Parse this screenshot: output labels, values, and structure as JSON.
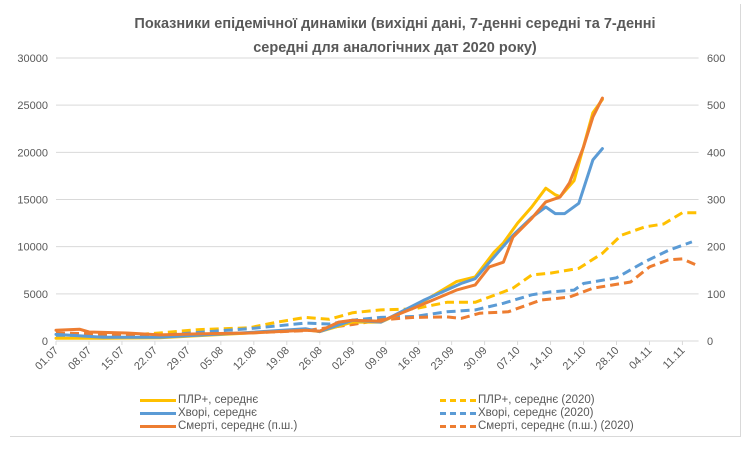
{
  "chart_data": {
    "type": "line",
    "title": "Показники епідемічної динаміки (вихідні дані, 7-денні середні та 7-денні середні для аналогічних дат 2020 року)",
    "title_lines": [
      "Показники епідемічної динаміки (вихідні дані, 7-денні середні та 7-денні",
      "середні для аналогічних дат 2020 року)"
    ],
    "x_start": "01.07",
    "x_end": "14.11",
    "x_ticks": [
      "01.07",
      "08.07",
      "15.07",
      "22.07",
      "29.07",
      "05.08",
      "12.08",
      "19.08",
      "26.08",
      "02.09",
      "09.09",
      "16.09",
      "23.09",
      "30.09",
      "07.10",
      "14.10",
      "21.10",
      "28.10",
      "04.11",
      "11.11"
    ],
    "y_left": {
      "range": [
        0,
        30000
      ],
      "ticks": [
        "0",
        "5000",
        "10000",
        "15000",
        "20000",
        "25000",
        "30000"
      ]
    },
    "y_right": {
      "range": [
        0,
        600
      ],
      "ticks": [
        "0",
        "100",
        "200",
        "300",
        "400",
        "500",
        "600"
      ]
    },
    "grid": true,
    "legend_position": "bottom",
    "series": [
      {
        "name": "ПЛР+, середнє",
        "axis": "left",
        "style": "solid",
        "color": "#FFC000",
        "points": [
          [
            "01.07",
            300
          ],
          [
            "11.07",
            300
          ],
          [
            "23.07",
            350
          ],
          [
            "31.07",
            550
          ],
          [
            "11.08",
            850
          ],
          [
            "23.08",
            1200
          ],
          [
            "26.08",
            1000
          ],
          [
            "02.09",
            2000
          ],
          [
            "08.09",
            2000
          ],
          [
            "15.09",
            3600
          ],
          [
            "24.09",
            6300
          ],
          [
            "28.09",
            6800
          ],
          [
            "02.10",
            9400
          ],
          [
            "04.10",
            10400
          ],
          [
            "07.10",
            12500
          ],
          [
            "10.10",
            14200
          ],
          [
            "13.10",
            16200
          ],
          [
            "15.10",
            15500
          ],
          [
            "16.10",
            15300
          ],
          [
            "19.10",
            17000
          ],
          [
            "21.10",
            20600
          ],
          [
            "23.10",
            24200
          ],
          [
            "25.10",
            25600
          ]
        ]
      },
      {
        "name": "Хворі, середнє",
        "axis": "left",
        "style": "solid",
        "color": "#5B9BD5",
        "points": [
          [
            "01.07",
            700
          ],
          [
            "11.07",
            400
          ],
          [
            "23.07",
            400
          ],
          [
            "31.07",
            600
          ],
          [
            "11.08",
            900
          ],
          [
            "23.08",
            1300
          ],
          [
            "26.08",
            1000
          ],
          [
            "30.08",
            1700
          ],
          [
            "02.09",
            2200
          ],
          [
            "08.09",
            2000
          ],
          [
            "17.09",
            4300
          ],
          [
            "25.09",
            6100
          ],
          [
            "28.09",
            6600
          ],
          [
            "02.10",
            8900
          ],
          [
            "06.10",
            11200
          ],
          [
            "10.10",
            13100
          ],
          [
            "13.10",
            14200
          ],
          [
            "15.10",
            13500
          ],
          [
            "17.10",
            13500
          ],
          [
            "20.10",
            14600
          ],
          [
            "23.10",
            19200
          ],
          [
            "25.10",
            20400
          ]
        ]
      },
      {
        "name": "Смерті, середнє (п.ш.)",
        "axis": "right",
        "style": "solid",
        "color": "#ED7D31",
        "points": [
          [
            "01.07",
            23
          ],
          [
            "06.07",
            25
          ],
          [
            "08.07",
            19
          ],
          [
            "16.07",
            17
          ],
          [
            "23.07",
            13
          ],
          [
            "31.07",
            15
          ],
          [
            "11.08",
            17
          ],
          [
            "23.08",
            23
          ],
          [
            "26.08",
            21
          ],
          [
            "30.08",
            40
          ],
          [
            "02.09",
            44
          ],
          [
            "08.09",
            42
          ],
          [
            "15.09",
            70
          ],
          [
            "24.09",
            108
          ],
          [
            "28.09",
            119
          ],
          [
            "01.10",
            157
          ],
          [
            "04.10",
            167
          ],
          [
            "06.10",
            220
          ],
          [
            "10.10",
            260
          ],
          [
            "13.10",
            295
          ],
          [
            "16.10",
            305
          ],
          [
            "18.10",
            335
          ],
          [
            "21.10",
            411
          ],
          [
            "23.10",
            475
          ],
          [
            "25.10",
            515
          ]
        ]
      },
      {
        "name": "ПЛР+, середнє (2020)",
        "axis": "left",
        "style": "dashed",
        "color": "#FFC000",
        "points": [
          [
            "01.07",
            600
          ],
          [
            "11.07",
            500
          ],
          [
            "16.07",
            600
          ],
          [
            "23.07",
            850
          ],
          [
            "31.07",
            1200
          ],
          [
            "11.08",
            1400
          ],
          [
            "17.08",
            2000
          ],
          [
            "23.08",
            2500
          ],
          [
            "28.08",
            2300
          ],
          [
            "02.09",
            3000
          ],
          [
            "08.09",
            3300
          ],
          [
            "15.09",
            3400
          ],
          [
            "22.09",
            4100
          ],
          [
            "28.09",
            4100
          ],
          [
            "04.10",
            5200
          ],
          [
            "06.10",
            5600
          ],
          [
            "10.10",
            7000
          ],
          [
            "14.10",
            7200
          ],
          [
            "20.10",
            7700
          ],
          [
            "25.10",
            9300
          ],
          [
            "29.10",
            11200
          ],
          [
            "03.11",
            12100
          ],
          [
            "07.11",
            12400
          ],
          [
            "11.11",
            13600
          ],
          [
            "14.11",
            13600
          ]
        ]
      },
      {
        "name": "Хворі, середнє (2020)",
        "axis": "left",
        "style": "dashed",
        "color": "#5B9BD5",
        "points": [
          [
            "01.07",
            400
          ],
          [
            "21.07",
            500
          ],
          [
            "31.07",
            900
          ],
          [
            "11.08",
            1300
          ],
          [
            "23.08",
            1900
          ],
          [
            "28.08",
            1800
          ],
          [
            "02.09",
            2200
          ],
          [
            "08.09",
            2500
          ],
          [
            "15.09",
            2600
          ],
          [
            "22.09",
            3100
          ],
          [
            "28.09",
            3300
          ],
          [
            "04.10",
            4000
          ],
          [
            "10.10",
            4900
          ],
          [
            "14.10",
            5200
          ],
          [
            "19.10",
            5400
          ],
          [
            "21.10",
            6100
          ],
          [
            "28.10",
            6700
          ],
          [
            "03.11",
            8400
          ],
          [
            "08.11",
            9600
          ],
          [
            "13.11",
            10500
          ]
        ]
      },
      {
        "name": "Смерті, середнє (п.ш.) (2020)",
        "axis": "right",
        "style": "dashed",
        "color": "#ED7D31",
        "points": [
          [
            "01.07",
            17
          ],
          [
            "23.07",
            12
          ],
          [
            "11.08",
            17
          ],
          [
            "23.08",
            22
          ],
          [
            "02.09",
            35
          ],
          [
            "08.09",
            45
          ],
          [
            "15.09",
            50
          ],
          [
            "22.09",
            51
          ],
          [
            "25.09",
            48
          ],
          [
            "29.09",
            59
          ],
          [
            "05.10",
            62
          ],
          [
            "12.10",
            87
          ],
          [
            "18.10",
            93
          ],
          [
            "23.10",
            112
          ],
          [
            "31.10",
            125
          ],
          [
            "04.11",
            157
          ],
          [
            "08.11",
            172
          ],
          [
            "11.11",
            174
          ],
          [
            "14.11",
            161
          ]
        ]
      }
    ]
  }
}
